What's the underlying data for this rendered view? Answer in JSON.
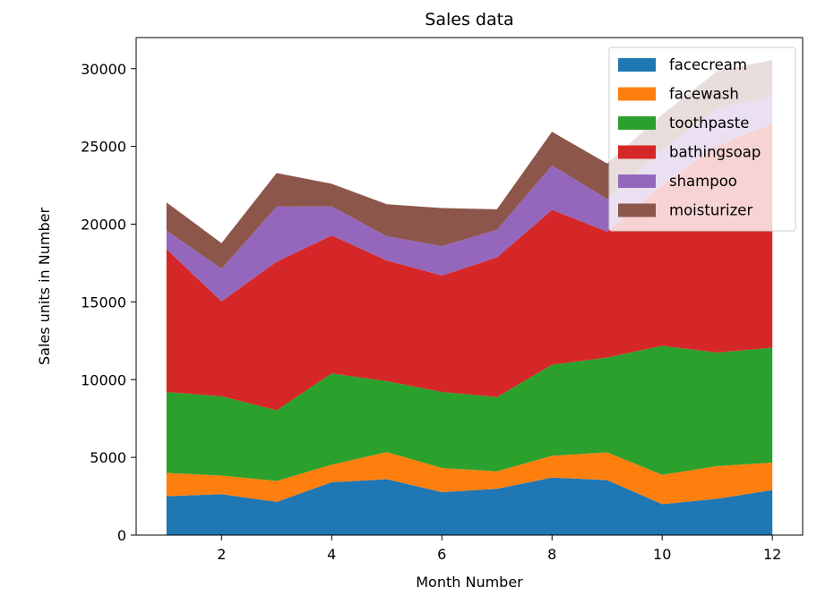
{
  "chart_data": {
    "type": "area",
    "stacked": true,
    "title": "Sales data",
    "xlabel": "Month Number",
    "ylabel": "Sales units in Number",
    "x": [
      1,
      2,
      3,
      4,
      5,
      6,
      7,
      8,
      9,
      10,
      11,
      12
    ],
    "xlim": [
      0.45,
      12.55
    ],
    "ylim": [
      0,
      32000
    ],
    "xticks": [
      2,
      4,
      6,
      8,
      10,
      12
    ],
    "yticks": [
      0,
      5000,
      10000,
      15000,
      20000,
      25000,
      30000
    ],
    "grid": false,
    "legend_position": "top-right",
    "series": [
      {
        "name": "facecream",
        "color": "#1f77b4",
        "values": [
          2500,
          2630,
          2140,
          3400,
          3600,
          2760,
          2980,
          3700,
          3540,
          1990,
          2340,
          2900
        ]
      },
      {
        "name": "facewash",
        "color": "#ff7f0e",
        "values": [
          1500,
          1200,
          1340,
          1130,
          1740,
          1555,
          1120,
          1400,
          1780,
          1890,
          2100,
          1760
        ]
      },
      {
        "name": "toothpaste",
        "color": "#2ca02c",
        "values": [
          5200,
          5100,
          4550,
          5870,
          4560,
          4890,
          4780,
          5860,
          6100,
          8300,
          7300,
          7400
        ]
      },
      {
        "name": "bathingsoap",
        "color": "#d62728",
        "values": [
          9200,
          6100,
          9550,
          8870,
          7760,
          7490,
          8980,
          9960,
          8100,
          10300,
          13300,
          14400
        ]
      },
      {
        "name": "shampoo",
        "color": "#9467bd",
        "values": [
          1200,
          2100,
          3550,
          1870,
          1560,
          1890,
          1780,
          2860,
          2100,
          2300,
          2400,
          1800
        ]
      },
      {
        "name": "moisturizer",
        "color": "#8c564b",
        "values": [
          1800,
          1650,
          2160,
          1460,
          2060,
          2450,
          1320,
          2160,
          2280,
          2260,
          2410,
          2300
        ]
      }
    ]
  }
}
